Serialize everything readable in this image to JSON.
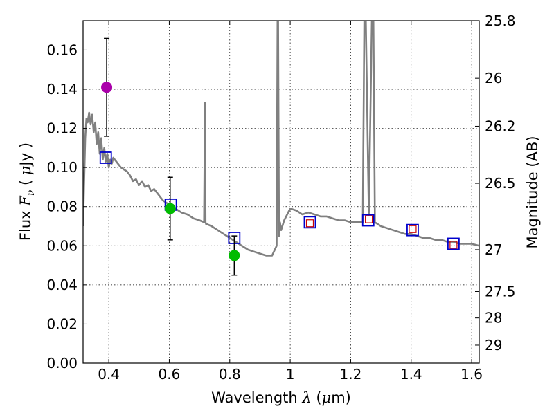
{
  "chart_data": {
    "type": "scatter",
    "title": "",
    "xlabel": {
      "prefix": "Wavelength  ",
      "symbol": "λ",
      "unit_open": " (",
      "unit_mu": "μ",
      "unit_close": "m)"
    },
    "ylabel": {
      "prefix": "Flux  ",
      "symbol": "F",
      "sub": "ν",
      "unit_open": "  ( ",
      "unit_mu": "μ",
      "unit_close": "Jy )"
    },
    "y2label": "Magnitude (AB)",
    "xlim": [
      0.315,
      1.625
    ],
    "ylim": [
      0.0,
      0.175
    ],
    "grid": true,
    "x_ticks": [
      0.4,
      0.6,
      0.8,
      1.0,
      1.2,
      1.4,
      1.6
    ],
    "x_tick_labels": [
      "0.4",
      "0.6",
      "0.8",
      "1",
      "1.2",
      "1.4",
      "1.6"
    ],
    "y_ticks": [
      0.0,
      0.02,
      0.04,
      0.06,
      0.08,
      0.1,
      0.12,
      0.14,
      0.16
    ],
    "y_tick_labels": [
      "0.00",
      "0.02",
      "0.04",
      "0.06",
      "0.08",
      "0.10",
      "0.12",
      "0.14",
      "0.16"
    ],
    "y2_ticks": [
      {
        "label": "25.8",
        "flux": 0.175
      },
      {
        "label": "26",
        "flux": 0.1456
      },
      {
        "label": "26.2",
        "flux": 0.1211
      },
      {
        "label": "26.5",
        "flux": 0.0919
      },
      {
        "label": "27",
        "flux": 0.058
      },
      {
        "label": "27.5",
        "flux": 0.0366
      },
      {
        "label": "28",
        "flux": 0.0231
      },
      {
        "label": "29",
        "flux": 0.0092
      }
    ],
    "series": [
      {
        "name": "model spectrum",
        "kind": "line",
        "color": "#808080",
        "x": [
          0.315,
          0.318,
          0.322,
          0.326,
          0.33,
          0.335,
          0.34,
          0.345,
          0.35,
          0.355,
          0.36,
          0.365,
          0.37,
          0.375,
          0.38,
          0.385,
          0.39,
          0.395,
          0.4,
          0.405,
          0.41,
          0.415,
          0.42,
          0.43,
          0.44,
          0.45,
          0.46,
          0.47,
          0.48,
          0.49,
          0.5,
          0.51,
          0.52,
          0.53,
          0.54,
          0.55,
          0.56,
          0.57,
          0.58,
          0.59,
          0.6,
          0.62,
          0.64,
          0.66,
          0.68,
          0.7,
          0.715,
          0.718,
          0.72,
          0.722,
          0.725,
          0.74,
          0.76,
          0.78,
          0.8,
          0.82,
          0.84,
          0.86,
          0.88,
          0.9,
          0.92,
          0.94,
          0.955,
          0.958,
          0.96,
          0.963,
          0.966,
          0.97,
          0.98,
          1.0,
          1.02,
          1.04,
          1.06,
          1.08,
          1.1,
          1.12,
          1.14,
          1.16,
          1.18,
          1.2,
          1.22,
          1.24,
          1.245,
          1.25,
          1.26,
          1.27,
          1.275,
          1.28,
          1.3,
          1.32,
          1.34,
          1.36,
          1.38,
          1.4,
          1.42,
          1.44,
          1.46,
          1.48,
          1.5,
          1.52,
          1.54,
          1.56,
          1.58,
          1.6,
          1.625
        ],
        "y": [
          0.07,
          0.09,
          0.115,
          0.125,
          0.123,
          0.128,
          0.122,
          0.127,
          0.118,
          0.123,
          0.112,
          0.118,
          0.107,
          0.115,
          0.104,
          0.11,
          0.103,
          0.107,
          0.1,
          0.104,
          0.102,
          0.105,
          0.104,
          0.102,
          0.1,
          0.099,
          0.098,
          0.096,
          0.093,
          0.094,
          0.091,
          0.093,
          0.09,
          0.091,
          0.088,
          0.089,
          0.087,
          0.085,
          0.083,
          0.082,
          0.081,
          0.079,
          0.077,
          0.076,
          0.074,
          0.073,
          0.072,
          0.133,
          0.072,
          0.071,
          0.071,
          0.07,
          0.068,
          0.066,
          0.064,
          0.062,
          0.06,
          0.058,
          0.057,
          0.056,
          0.055,
          0.055,
          0.06,
          0.175,
          0.175,
          0.065,
          0.072,
          0.068,
          0.073,
          0.079,
          0.078,
          0.076,
          0.077,
          0.076,
          0.075,
          0.075,
          0.074,
          0.073,
          0.073,
          0.072,
          0.072,
          0.072,
          0.175,
          0.175,
          0.076,
          0.175,
          0.175,
          0.072,
          0.07,
          0.069,
          0.068,
          0.067,
          0.066,
          0.066,
          0.065,
          0.064,
          0.064,
          0.063,
          0.063,
          0.062,
          0.062,
          0.061,
          0.061,
          0.061,
          0.06
        ]
      },
      {
        "name": "model photometry (blue squares)",
        "kind": "marker",
        "marker": "square",
        "color": "#0000cc",
        "x": [
          0.39,
          0.605,
          0.815,
          1.065,
          1.258,
          1.405,
          1.54
        ],
        "y": [
          0.105,
          0.081,
          0.064,
          0.072,
          0.073,
          0.068,
          0.061
        ]
      },
      {
        "name": "photometry (small red squares)",
        "kind": "marker",
        "marker": "square-small",
        "color": "#cc0000",
        "x": [
          1.065,
          1.26,
          1.405,
          1.54
        ],
        "y": [
          0.0715,
          0.0735,
          0.0685,
          0.0605
        ]
      },
      {
        "name": "observed (magenta)",
        "kind": "marker",
        "marker": "circle",
        "color": "#aa00aa",
        "x": [
          0.393
        ],
        "y": [
          0.141
        ],
        "err": [
          0.025
        ]
      },
      {
        "name": "observed (green)",
        "kind": "marker",
        "marker": "circle",
        "color": "#00bb00",
        "x": [
          0.603,
          0.815
        ],
        "y": [
          0.079,
          0.055
        ],
        "err": [
          0.016,
          0.01
        ]
      }
    ]
  }
}
